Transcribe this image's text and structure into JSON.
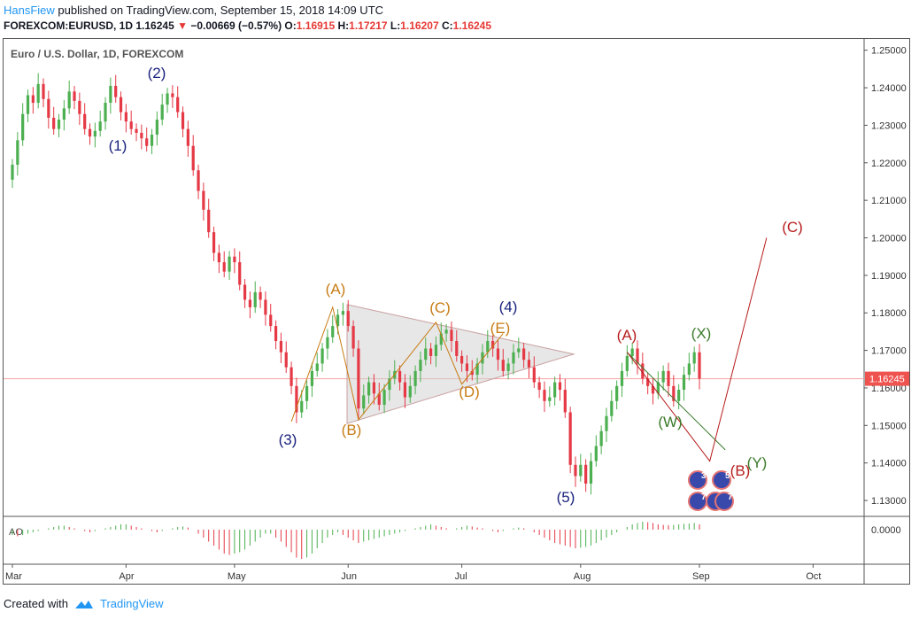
{
  "header": {
    "author": "HansFiew",
    "published": "published on TradingView.com, September 15, 2018 14:09 UTC",
    "symbol": "FOREXCOM:EURUSD, 1D",
    "last": "1.16245",
    "change_arrow": "▼",
    "change": "−0.00669 (−0.57%)",
    "o_label": "O:",
    "o_value": "1.16915",
    "h_label": "H:",
    "h_value": "1.17217",
    "l_label": "L:",
    "l_value": "1.16207",
    "c_label": "C:",
    "c_value": "1.16245"
  },
  "footer": {
    "created_with": "Created with",
    "brand": "TradingView"
  },
  "colors": {
    "up": "#4caf50",
    "down": "#e53946",
    "wave_blue": "#1a237e",
    "wave_orange": "#c77b12",
    "wave_red": "#b71c1c",
    "wave_green": "#3b7a2b",
    "triangle_fill": "#d3d3d3",
    "price_line": "#f4a3a3",
    "last_price_bg": "#ef5350"
  },
  "chart_data": {
    "type": "candlestick",
    "title": "Euro / U.S. Dollar, 1D, FOREXCOM",
    "y_ticks": [
      "1.25000",
      "1.24000",
      "1.23000",
      "1.22000",
      "1.21000",
      "1.20000",
      "1.19000",
      "1.18000",
      "1.17000",
      "1.16000",
      "1.15000",
      "1.14000",
      "1.13000"
    ],
    "ylim": [
      1.126,
      1.253
    ],
    "last_price_label": "1.16245",
    "x_ticks": [
      "Mar",
      "Apr",
      "May",
      "Jun",
      "Jul",
      "Aug",
      "Sep",
      "Oct"
    ],
    "closes": [
      1.2195,
      1.226,
      1.233,
      1.238,
      1.236,
      1.241,
      1.237,
      1.232,
      1.229,
      1.2315,
      1.2345,
      1.239,
      1.2365,
      1.233,
      1.229,
      1.227,
      1.2285,
      1.231,
      1.236,
      1.2405,
      1.2375,
      1.2335,
      1.231,
      1.229,
      1.228,
      1.2265,
      1.2245,
      1.2275,
      1.2315,
      1.2355,
      1.2385,
      1.2375,
      1.2335,
      1.229,
      1.2245,
      1.218,
      1.2125,
      1.2075,
      1.2015,
      1.196,
      1.1935,
      1.191,
      1.195,
      1.1935,
      1.1875,
      1.1835,
      1.1815,
      1.1855,
      1.1835,
      1.1795,
      1.1765,
      1.1725,
      1.1695,
      1.1655,
      1.1605,
      1.1535,
      1.1565,
      1.1605,
      1.1645,
      1.1665,
      1.1705,
      1.1735,
      1.1765,
      1.1795,
      1.1805,
      1.1765,
      1.1705,
      1.1545,
      1.158,
      1.1615,
      1.1585,
      1.1555,
      1.1595,
      1.1625,
      1.1645,
      1.1615,
      1.1575,
      1.1605,
      1.1645,
      1.1675,
      1.1705,
      1.1685,
      1.1715,
      1.1745,
      1.1755,
      1.1725,
      1.1685,
      1.1665,
      1.1645,
      1.1635,
      1.1665,
      1.1695,
      1.1725,
      1.1705,
      1.1675,
      1.1645,
      1.1665,
      1.1695,
      1.1705,
      1.1675,
      1.1655,
      1.1615,
      1.1595,
      1.1565,
      1.1575,
      1.1615,
      1.1595,
      1.1535,
      1.1395,
      1.1365,
      1.1395,
      1.1345,
      1.1405,
      1.1445,
      1.1485,
      1.1525,
      1.1565,
      1.1605,
      1.1645,
      1.1685,
      1.1705,
      1.1665,
      1.1625,
      1.1605,
      1.1585,
      1.1615,
      1.1645,
      1.1605,
      1.1565,
      1.1595,
      1.1635,
      1.1665,
      1.1695,
      1.1625
    ],
    "ao_values": [
      -0.002,
      -0.0025,
      -0.002,
      -0.0015,
      -0.001,
      -0.0005,
      0.0,
      0.0005,
      0.001,
      0.0015,
      0.0015,
      0.001,
      0.0005,
      0.0,
      -0.0005,
      -0.001,
      -0.0005,
      0.0,
      0.0005,
      0.001,
      0.0015,
      0.002,
      0.002,
      0.0015,
      0.001,
      0.0005,
      0.0,
      -0.0005,
      -0.001,
      -0.0005,
      0.0,
      0.0005,
      0.001,
      0.0012,
      0.0008,
      0.0,
      -0.0015,
      -0.003,
      -0.0045,
      -0.006,
      -0.0075,
      -0.009,
      -0.0095,
      -0.009,
      -0.0085,
      -0.0075,
      -0.006,
      -0.0045,
      -0.003,
      -0.0015,
      -0.0015,
      -0.003,
      -0.0045,
      -0.0065,
      -0.0085,
      -0.0105,
      -0.011,
      -0.0105,
      -0.009,
      -0.007,
      -0.005,
      -0.003,
      -0.002,
      -0.001,
      -0.002,
      -0.003,
      -0.004,
      -0.005,
      -0.0045,
      -0.004,
      -0.0035,
      -0.003,
      -0.0025,
      -0.002,
      -0.0015,
      -0.001,
      -0.0005,
      0.0,
      0.0005,
      0.001,
      0.0015,
      0.002,
      0.0015,
      0.001,
      0.0005,
      0.0,
      0.0005,
      0.001,
      0.0015,
      0.0012,
      0.0008,
      0.0005,
      0.0,
      -0.0005,
      -0.001,
      -0.0005,
      0.0,
      0.0005,
      0.0008,
      0.0005,
      0.0,
      -0.001,
      -0.002,
      -0.003,
      -0.004,
      -0.005,
      -0.0055,
      -0.006,
      -0.0065,
      -0.007,
      -0.0068,
      -0.0065,
      -0.006,
      -0.005,
      -0.004,
      -0.003,
      -0.002,
      -0.001,
      0.0,
      0.001,
      0.002,
      0.0025,
      0.003,
      0.0028,
      0.0025,
      0.002,
      0.0018,
      0.0017,
      0.0018,
      0.002,
      0.0022,
      0.0023,
      0.0025,
      0.002
    ],
    "ao_label": "AO",
    "ao_zero_label": "0.0000",
    "annotations": [
      {
        "text": "(1)",
        "color": "wave_blue"
      },
      {
        "text": "(2)",
        "color": "wave_blue"
      },
      {
        "text": "(3)",
        "color": "wave_blue"
      },
      {
        "text": "(4)",
        "color": "wave_blue"
      },
      {
        "text": "(5)",
        "color": "wave_blue"
      },
      {
        "text": "(A)",
        "color": "wave_orange"
      },
      {
        "text": "(B)",
        "color": "wave_orange"
      },
      {
        "text": "(C)",
        "color": "wave_orange"
      },
      {
        "text": "(D)",
        "color": "wave_orange"
      },
      {
        "text": "(E)",
        "color": "wave_orange"
      },
      {
        "text": "(A)",
        "color": "wave_red"
      },
      {
        "text": "(B)",
        "color": "wave_red"
      },
      {
        "text": "(C)",
        "color": "wave_red"
      },
      {
        "text": "(X)",
        "color": "wave_green"
      },
      {
        "text": "(W)",
        "color": "wave_green"
      },
      {
        "text": "(Y)",
        "color": "wave_green"
      }
    ],
    "event_badges": [
      "3",
      "5",
      "7",
      "4",
      "7"
    ]
  }
}
